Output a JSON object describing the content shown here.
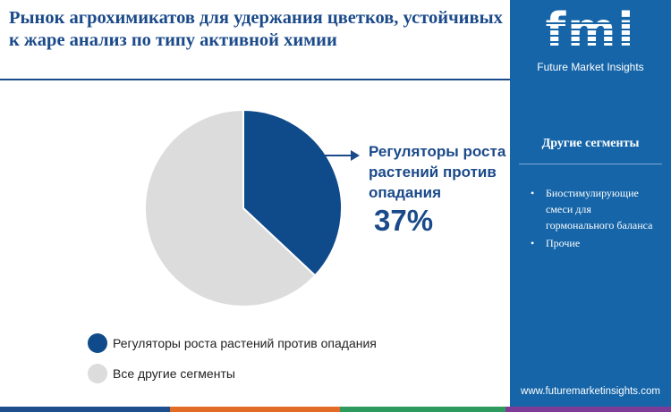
{
  "title": "Рынок агрохимикатов для удержания цветков, устойчивых к жаре анализ по типу активной химии",
  "brand": {
    "logo_text": "fmi",
    "name": "Future Market Insights",
    "website": "www.futuremarketinsights.com"
  },
  "sidebar": {
    "segments_title": "Другие сегменты",
    "bullet": "•",
    "items": [
      "Биостимулирующие смеси для гормонального баланса",
      "Прочие"
    ]
  },
  "callout": {
    "label": "Регуляторы роста растений против опадания",
    "value": "37%"
  },
  "chart_data": {
    "type": "pie",
    "categories": [
      "Регуляторы роста растений против опадания",
      "Все другие сегменты"
    ],
    "values": [
      37,
      63
    ],
    "colors": [
      "#0f4a8a",
      "#dcdcdc"
    ],
    "legend_position": "bottom-left"
  },
  "colors": {
    "accent": "#1b4a8a",
    "sidebar": "#1565a8",
    "bottom_bar": [
      "#1f4e8c",
      "#e26b26",
      "#2e9a5e",
      "#7d3c98"
    ]
  }
}
